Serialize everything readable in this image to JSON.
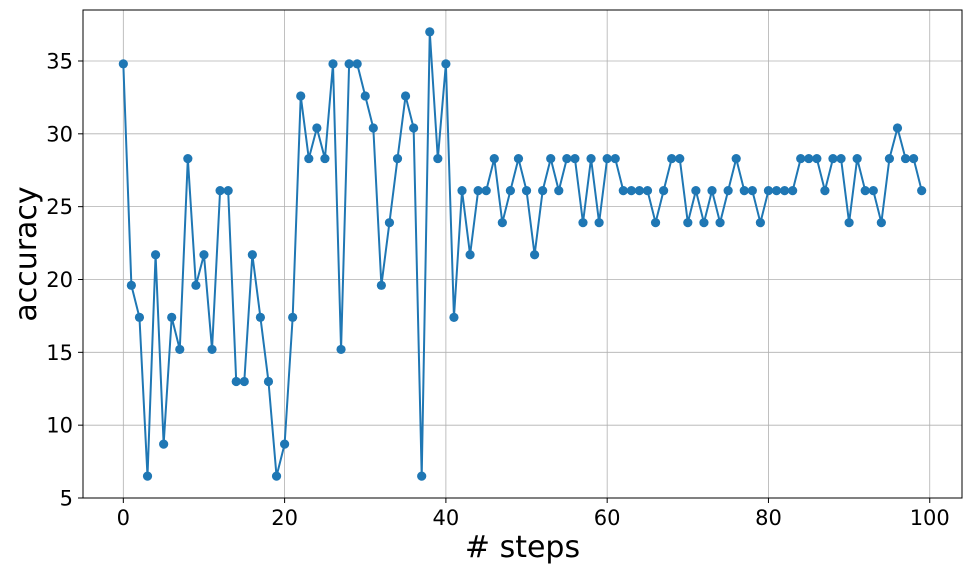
{
  "chart_data": {
    "type": "line",
    "title": "",
    "xlabel": "# steps",
    "ylabel": "accuracy",
    "xlim": [
      -5,
      104
    ],
    "ylim": [
      5,
      38.5
    ],
    "x_ticks": [
      0,
      20,
      40,
      60,
      80,
      100
    ],
    "y_ticks": [
      5,
      10,
      15,
      20,
      25,
      30,
      35
    ],
    "grid": true,
    "line_color": "#1f77b4",
    "marker": "circle",
    "series": [
      {
        "x": [
          0,
          1,
          2,
          3,
          4,
          5,
          6,
          7,
          8,
          9,
          10,
          11,
          12,
          13,
          14,
          15,
          16,
          17,
          18,
          19,
          20,
          21,
          22,
          23,
          24,
          25,
          26,
          27,
          28,
          29,
          30,
          31,
          32,
          33,
          34,
          35,
          36,
          37,
          38,
          39,
          40,
          41,
          42,
          43,
          44,
          45,
          46,
          47,
          48,
          49,
          50,
          51,
          52,
          53,
          54,
          55,
          56,
          57,
          58,
          59,
          60,
          61,
          62,
          63,
          64,
          65,
          66,
          67,
          68,
          69,
          70,
          71,
          72,
          73,
          74,
          75,
          76,
          77,
          78,
          79,
          80,
          81,
          82,
          83,
          84,
          85,
          86,
          87,
          88,
          89,
          90,
          91,
          92,
          93,
          94,
          95,
          96,
          97,
          98,
          99
        ],
        "values": [
          34.8,
          19.6,
          17.4,
          6.5,
          21.7,
          8.7,
          17.4,
          15.2,
          28.3,
          19.6,
          21.7,
          15.2,
          26.1,
          26.1,
          13.0,
          13.0,
          21.7,
          17.4,
          13.0,
          6.5,
          8.7,
          17.4,
          32.6,
          28.3,
          30.4,
          28.3,
          34.8,
          15.2,
          34.8,
          34.8,
          32.6,
          30.4,
          19.6,
          23.9,
          28.3,
          32.6,
          30.4,
          6.5,
          37.0,
          28.3,
          34.8,
          17.4,
          26.1,
          21.7,
          26.1,
          26.1,
          28.3,
          23.9,
          26.1,
          28.3,
          26.1,
          21.7,
          26.1,
          28.3,
          26.1,
          28.3,
          28.3,
          23.9,
          28.3,
          23.9,
          28.3,
          28.3,
          26.1,
          26.1,
          26.1,
          26.1,
          23.9,
          26.1,
          28.3,
          28.3,
          23.9,
          26.1,
          23.9,
          26.1,
          23.9,
          26.1,
          28.3,
          26.1,
          26.1,
          23.9,
          26.1,
          26.1,
          26.1,
          26.1,
          28.3,
          28.3,
          28.3,
          26.1,
          28.3,
          28.3,
          23.9,
          28.3,
          26.1,
          26.1,
          23.9,
          28.3,
          30.4,
          28.3,
          28.3,
          26.1
        ]
      }
    ]
  }
}
